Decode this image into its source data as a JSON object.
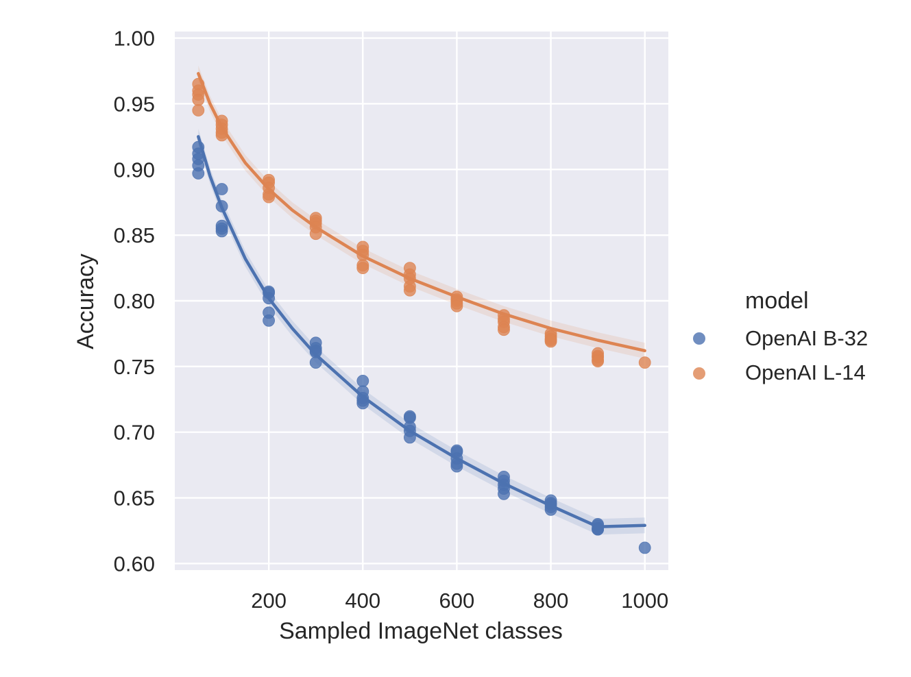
{
  "chart_data": {
    "type": "scatter",
    "title": "",
    "xlabel": "Sampled ImageNet classes",
    "ylabel": "Accuracy",
    "xlim": [
      0,
      1050
    ],
    "ylim": [
      0.595,
      1.005
    ],
    "xticks": [
      200,
      400,
      600,
      800,
      1000
    ],
    "xtick_labels": [
      "200",
      "400",
      "600",
      "800",
      "1000"
    ],
    "yticks": [
      0.6,
      0.65,
      0.7,
      0.75,
      0.8,
      0.85,
      0.9,
      0.95,
      1.0
    ],
    "ytick_labels": [
      "0.60",
      "0.65",
      "0.70",
      "0.75",
      "0.80",
      "0.85",
      "0.90",
      "0.95",
      "1.00"
    ],
    "grid": true,
    "background": "#eaeaf2",
    "legend": {
      "title": "model",
      "placement": "right"
    },
    "series": [
      {
        "name": "OpenAI B-32",
        "color": "#4c72b0",
        "points": [
          [
            50,
            0.917
          ],
          [
            50,
            0.912
          ],
          [
            50,
            0.908
          ],
          [
            50,
            0.903
          ],
          [
            50,
            0.897
          ],
          [
            100,
            0.885
          ],
          [
            100,
            0.872
          ],
          [
            100,
            0.857
          ],
          [
            100,
            0.855
          ],
          [
            100,
            0.853
          ],
          [
            200,
            0.807
          ],
          [
            200,
            0.806
          ],
          [
            200,
            0.802
          ],
          [
            200,
            0.791
          ],
          [
            200,
            0.785
          ],
          [
            300,
            0.768
          ],
          [
            300,
            0.764
          ],
          [
            300,
            0.762
          ],
          [
            300,
            0.761
          ],
          [
            300,
            0.753
          ],
          [
            400,
            0.739
          ],
          [
            400,
            0.731
          ],
          [
            400,
            0.726
          ],
          [
            400,
            0.724
          ],
          [
            400,
            0.722
          ],
          [
            500,
            0.712
          ],
          [
            500,
            0.711
          ],
          [
            500,
            0.704
          ],
          [
            500,
            0.701
          ],
          [
            500,
            0.696
          ],
          [
            600,
            0.686
          ],
          [
            600,
            0.685
          ],
          [
            600,
            0.68
          ],
          [
            600,
            0.676
          ],
          [
            600,
            0.674
          ],
          [
            700,
            0.666
          ],
          [
            700,
            0.663
          ],
          [
            700,
            0.66
          ],
          [
            700,
            0.657
          ],
          [
            700,
            0.653
          ],
          [
            800,
            0.648
          ],
          [
            800,
            0.646
          ],
          [
            800,
            0.645
          ],
          [
            800,
            0.643
          ],
          [
            800,
            0.641
          ],
          [
            900,
            0.63
          ],
          [
            900,
            0.629
          ],
          [
            900,
            0.627
          ],
          [
            900,
            0.626
          ],
          [
            900,
            0.626
          ],
          [
            1000,
            0.612
          ]
        ],
        "fit": [
          [
            50,
            0.925
          ],
          [
            75,
            0.895
          ],
          [
            100,
            0.871
          ],
          [
            150,
            0.832
          ],
          [
            200,
            0.802
          ],
          [
            250,
            0.779
          ],
          [
            300,
            0.759
          ],
          [
            400,
            0.727
          ],
          [
            500,
            0.701
          ],
          [
            600,
            0.68
          ],
          [
            700,
            0.661
          ],
          [
            800,
            0.644
          ],
          [
            900,
            0.628
          ],
          [
            1000,
            0.629
          ]
        ]
      },
      {
        "name": "OpenAI L-14",
        "color": "#dd8452",
        "points": [
          [
            50,
            0.965
          ],
          [
            50,
            0.96
          ],
          [
            50,
            0.957
          ],
          [
            50,
            0.953
          ],
          [
            50,
            0.945
          ],
          [
            100,
            0.937
          ],
          [
            100,
            0.934
          ],
          [
            100,
            0.931
          ],
          [
            100,
            0.928
          ],
          [
            100,
            0.926
          ],
          [
            200,
            0.892
          ],
          [
            200,
            0.89
          ],
          [
            200,
            0.886
          ],
          [
            200,
            0.881
          ],
          [
            200,
            0.879
          ],
          [
            300,
            0.863
          ],
          [
            300,
            0.861
          ],
          [
            300,
            0.859
          ],
          [
            300,
            0.856
          ],
          [
            300,
            0.851
          ],
          [
            400,
            0.841
          ],
          [
            400,
            0.838
          ],
          [
            400,
            0.835
          ],
          [
            400,
            0.827
          ],
          [
            400,
            0.825
          ],
          [
            500,
            0.825
          ],
          [
            500,
            0.82
          ],
          [
            500,
            0.817
          ],
          [
            500,
            0.811
          ],
          [
            500,
            0.808
          ],
          [
            600,
            0.803
          ],
          [
            600,
            0.801
          ],
          [
            600,
            0.8
          ],
          [
            600,
            0.798
          ],
          [
            600,
            0.796
          ],
          [
            700,
            0.789
          ],
          [
            700,
            0.786
          ],
          [
            700,
            0.784
          ],
          [
            700,
            0.78
          ],
          [
            700,
            0.778
          ],
          [
            800,
            0.775
          ],
          [
            800,
            0.773
          ],
          [
            800,
            0.771
          ],
          [
            800,
            0.77
          ],
          [
            800,
            0.769
          ],
          [
            900,
            0.76
          ],
          [
            900,
            0.758
          ],
          [
            900,
            0.757
          ],
          [
            900,
            0.755
          ],
          [
            900,
            0.754
          ],
          [
            1000,
            0.753
          ]
        ],
        "fit": [
          [
            50,
            0.973
          ],
          [
            75,
            0.95
          ],
          [
            100,
            0.932
          ],
          [
            150,
            0.905
          ],
          [
            200,
            0.885
          ],
          [
            250,
            0.869
          ],
          [
            300,
            0.856
          ],
          [
            400,
            0.834
          ],
          [
            500,
            0.817
          ],
          [
            600,
            0.803
          ],
          [
            700,
            0.79
          ],
          [
            800,
            0.779
          ],
          [
            900,
            0.77
          ],
          [
            1000,
            0.762
          ]
        ]
      }
    ]
  }
}
